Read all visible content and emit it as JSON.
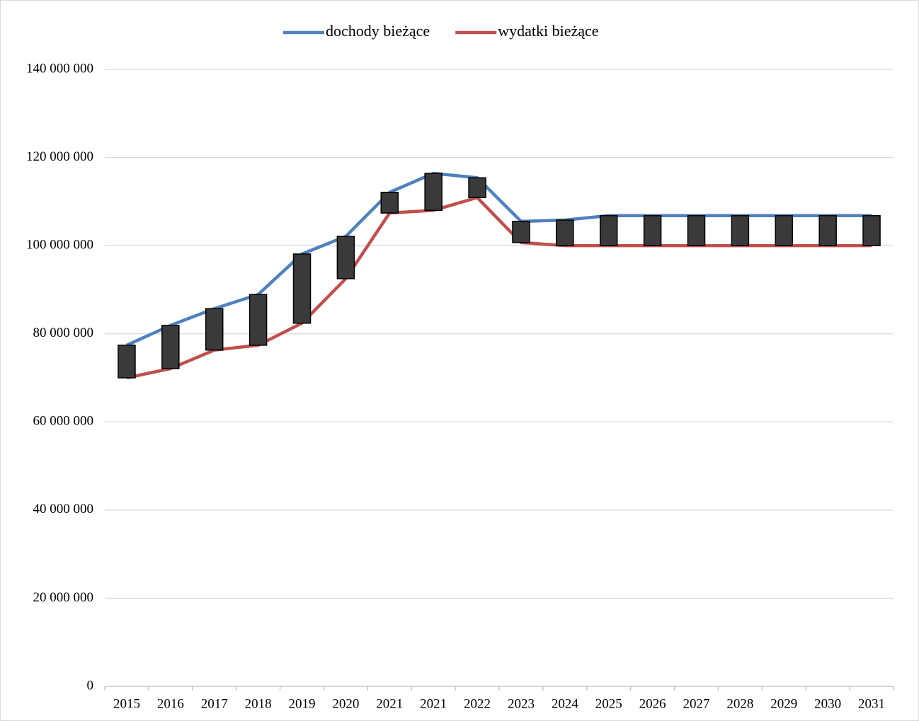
{
  "chart_data": {
    "type": "line",
    "categories": [
      "2015",
      "2016",
      "2017",
      "2018",
      "2019",
      "2020",
      "2021",
      "2021",
      "2022",
      "2023",
      "2024",
      "2025",
      "2026",
      "2027",
      "2028",
      "2029",
      "2030",
      "2031"
    ],
    "series": [
      {
        "name": "dochody bieżące",
        "color": "#4f81bd",
        "values": [
          77400000,
          81900000,
          85700000,
          88900000,
          98100000,
          102100000,
          112100000,
          116400000,
          115400000,
          105500000,
          105800000,
          106800000,
          106800000,
          106800000,
          106800000,
          106800000,
          106800000,
          106800000
        ]
      },
      {
        "name": "wydatki bieżące",
        "color": "#c0504d",
        "values": [
          70000000,
          72100000,
          76300000,
          77400000,
          82400000,
          92500000,
          107400000,
          108000000,
          110900000,
          100700000,
          100000000,
          100000000,
          100000000,
          100000000,
          100000000,
          100000000,
          100000000,
          100000000
        ]
      }
    ],
    "updown_bars": true,
    "updown_color": "#3a3a3a",
    "ylim": [
      0,
      140000000
    ],
    "yticks": [
      0,
      {
        "value": 20000000,
        "label": "20 000 000"
      },
      {
        "value": 40000000,
        "label": "40 000 000"
      },
      {
        "value": 60000000,
        "label": "60 000 000"
      },
      {
        "value": 80000000,
        "label": "80 000 000"
      },
      {
        "value": 100000000,
        "label": "100 000 000"
      },
      {
        "value": 120000000,
        "label": "120 000 000"
      },
      {
        "value": 140000000,
        "label": "140 000 000"
      }
    ],
    "grid": true,
    "legend": "top"
  }
}
